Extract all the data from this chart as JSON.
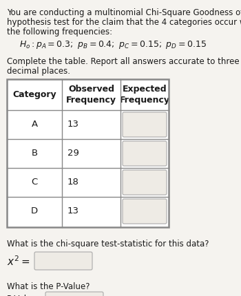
{
  "title_line1": "You are conducting a multinomial Chi-Square Goodness of Fit",
  "title_line2": "hypothesis test for the claim that the 4 categories occur with",
  "title_line3": "the following frequencies:",
  "hypothesis": "$H_o : p_A = 0.3; \\ p_B = 0.4; \\ p_C = 0.15; \\ p_D = 0.15$",
  "complete_line1": "Complete the table. Report all answers accurate to three",
  "complete_line2": "decimal places.",
  "col0_header": "Category",
  "col1_header": "Observed\nFrequency",
  "col2_header": "Expected\nFrequency",
  "categories": [
    "A",
    "B",
    "C",
    "D"
  ],
  "observed": [
    "13",
    "29",
    "18",
    "13"
  ],
  "chi_question": "What is the chi-square test-statistic for this data?",
  "chi_label": "$x^2 = $",
  "pvalue_question": "What is the P-Value?",
  "pvalue_label": "P-Value = ",
  "bg_color": "#f5f3ef",
  "white": "#ffffff",
  "input_box_color": "#eeebe5",
  "border_color": "#888888",
  "text_color": "#1a1a1a",
  "font_size": 8.5,
  "font_size_hyp": 9.0,
  "font_size_header": 9.0,
  "font_size_data": 9.5
}
